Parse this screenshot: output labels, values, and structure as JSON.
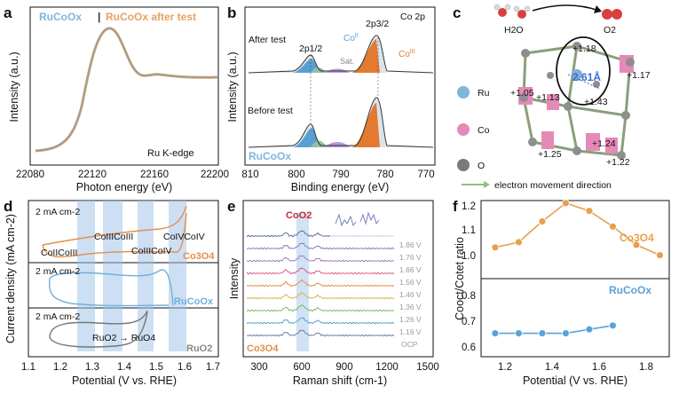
{
  "panels": {
    "a": {
      "label": "a",
      "legend_left": "RuCoOx",
      "legend_sep": "|",
      "legend_right": "RuCoOx after test",
      "edge_label": "Ru K-edge",
      "xlabel": "Photon energy (eV)",
      "ylabel": "Intensity (a.u.)",
      "xticks": [
        "22080",
        "22120",
        "22160",
        "22200"
      ],
      "colors": {
        "before": "#7fb6dc",
        "after": "#e8a060"
      }
    },
    "b": {
      "label": "b",
      "title": "Co 2p",
      "after_label": "After test",
      "before_label": "Before test",
      "peak_12": "2p1/2",
      "peak_32": "2p3/2",
      "co2": "Co",
      "co2_sup": "II",
      "co3": "Co",
      "co3_sup": "III",
      "sat": "Sat.",
      "sample": "RuCoOx",
      "xlabel": "Binding energy (eV)",
      "ylabel": "Intensity (a.u.)",
      "xticks": [
        "810",
        "800",
        "790",
        "780",
        "770"
      ]
    },
    "c": {
      "label": "c",
      "h2o": "H2O",
      "o2": "O2",
      "distance": "2.61Å",
      "charges": [
        "+1.18",
        "+1.17",
        "+1.05",
        "+1.13",
        "+1.43",
        "+1.24",
        "+1.25",
        "+1.22"
      ],
      "legend": [
        "Ru",
        "Co",
        "O"
      ],
      "arrow_caption": "electron movement direction"
    },
    "d": {
      "label": "d",
      "scale": "2 mA cm-2",
      "labels": [
        "CoIICoIII",
        "CoIIICoIII",
        "CoIIICoIV",
        "CoIVCoIV"
      ],
      "samples": [
        "Co3O4",
        "RuCoOx",
        "RuO2"
      ],
      "ru_transition": "RuO2 → RuO4",
      "xlabel": "Potential (V vs. RHE)",
      "ylabel": "Current density (mA cm-2)",
      "xticks": [
        "1.1",
        "1.2",
        "1.3",
        "1.4",
        "1.5",
        "1.6",
        "1.7"
      ]
    },
    "e": {
      "label": "e",
      "peak_label": "CoO2",
      "sample": "Co3O4",
      "potentials": [
        "1.86 V",
        "1.76 V",
        "1.66 V",
        "1.56 V",
        "1.46 V",
        "1.36 V",
        "1.26 V",
        "1.16 V",
        "OCP"
      ],
      "xlabel": "Raman shift (cm-1)",
      "ylabel": "Intensity",
      "xticks": [
        "300",
        "600",
        "900",
        "1200",
        "1500"
      ]
    },
    "f": {
      "label": "f",
      "ylabel": "Cooct/Cotet ratio",
      "xlabel": "Potential (V vs. RHE)",
      "xticks": [
        "1.2",
        "1.4",
        "1.6",
        "1.8"
      ],
      "yticks": [
        "0.6",
        "0.7",
        "0.8",
        "1.0",
        "1.1",
        "1.2"
      ],
      "series_labels": [
        "Co3O4",
        "RuCoOx"
      ]
    }
  },
  "chart_data": [
    {
      "type": "scatter",
      "panel": "f",
      "series": [
        {
          "name": "Co3O4",
          "color": "#e8a050",
          "x": [
            1.16,
            1.26,
            1.36,
            1.46,
            1.56,
            1.66,
            1.76,
            1.86
          ],
          "y": [
            1.07,
            1.09,
            1.17,
            1.24,
            1.21,
            1.15,
            1.08,
            1.04
          ]
        },
        {
          "name": "RuCoOx",
          "color": "#5ba2d8",
          "x": [
            1.16,
            1.26,
            1.36,
            1.46,
            1.56,
            1.66
          ],
          "y": [
            0.61,
            0.61,
            0.61,
            0.61,
            0.62,
            0.63
          ]
        }
      ],
      "xlim": [
        1.1,
        1.9
      ]
    }
  ]
}
